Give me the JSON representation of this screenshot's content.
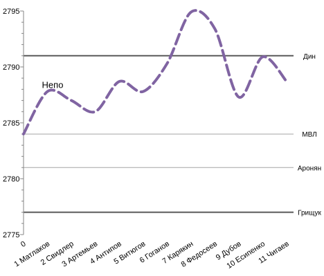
{
  "chart_data": {
    "type": "line",
    "title": "",
    "xlabel": "",
    "ylabel": "",
    "ylim": [
      2775,
      2795
    ],
    "yticks": [
      2775,
      2780,
      2785,
      2790,
      2795
    ],
    "categories": [
      "0",
      "1 Матлаков",
      "2 Свидлер",
      "3 Артемьев",
      "4 Антипов",
      "5 Витюгов",
      "6 Гоганов",
      "7 Карякин",
      "8 Федосеев",
      "9 Дубов",
      "10 Есипенко",
      "11 Чигаев"
    ],
    "series": [
      {
        "name": "",
        "color": "#8064a2",
        "style": "dashed",
        "values": [
          2784.0,
          2787.8,
          2787.0,
          2786.0,
          2788.7,
          2787.8,
          2790.3,
          2794.9,
          2793.4,
          2787.3,
          2790.9,
          2788.7
        ]
      }
    ],
    "reference_lines": [
      {
        "label": "Дин",
        "value": 2791.0,
        "color": "#595959",
        "weight": "thick"
      },
      {
        "label": "МВЛ",
        "value": 2784.0,
        "color": "#a6a6a6",
        "weight": "thin"
      },
      {
        "label": "Аронян",
        "value": 2781.0,
        "color": "#a6a6a6",
        "weight": "thin"
      },
      {
        "label": "Грищук",
        "value": 2777.0,
        "color": "#595959",
        "weight": "thick"
      }
    ],
    "annotations": [
      {
        "text": "Непо",
        "category": "1 Матлаков",
        "value": 2787.8
      }
    ],
    "grid": false
  }
}
